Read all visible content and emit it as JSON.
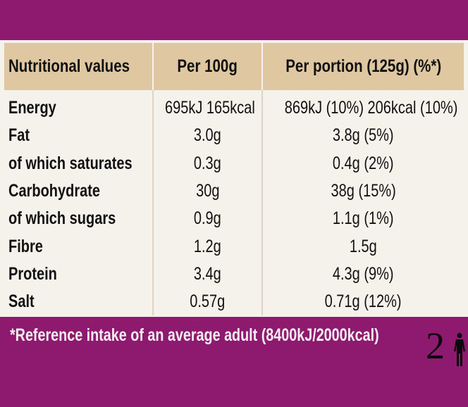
{
  "table": {
    "headers": [
      "Nutritional values",
      "Per 100g",
      "Per portion (125g) (%*)"
    ],
    "rows": [
      {
        "name": "Energy",
        "per100": "695kJ 165kcal",
        "portion": "869kJ (10%) 206kcal (10%)"
      },
      {
        "name": "Fat",
        "per100": "3.0g",
        "portion": "3.8g (5%)"
      },
      {
        "name": "of which saturates",
        "per100": "0.3g",
        "portion": "0.4g (2%)"
      },
      {
        "name": "Carbohydrate",
        "per100": "30g",
        "portion": "38g (15%)"
      },
      {
        "name": "of which sugars",
        "per100": "0.9g",
        "portion": "1.1g (1%)"
      },
      {
        "name": "Fibre",
        "per100": "1.2g",
        "portion": "1.5g"
      },
      {
        "name": "Protein",
        "per100": "3.4g",
        "portion": "4.3g (9%)"
      },
      {
        "name": "Salt",
        "per100": "0.57g",
        "portion": "0.71g (12%)"
      }
    ]
  },
  "footnote": "*Reference intake of an average adult (8400kJ/2000kcal)",
  "portion_badge": {
    "number": "2",
    "icon": "person-icon"
  },
  "colors": {
    "background": "#8e1a6f",
    "header": "#dfc8a1",
    "panel": "#f5f2ec"
  }
}
